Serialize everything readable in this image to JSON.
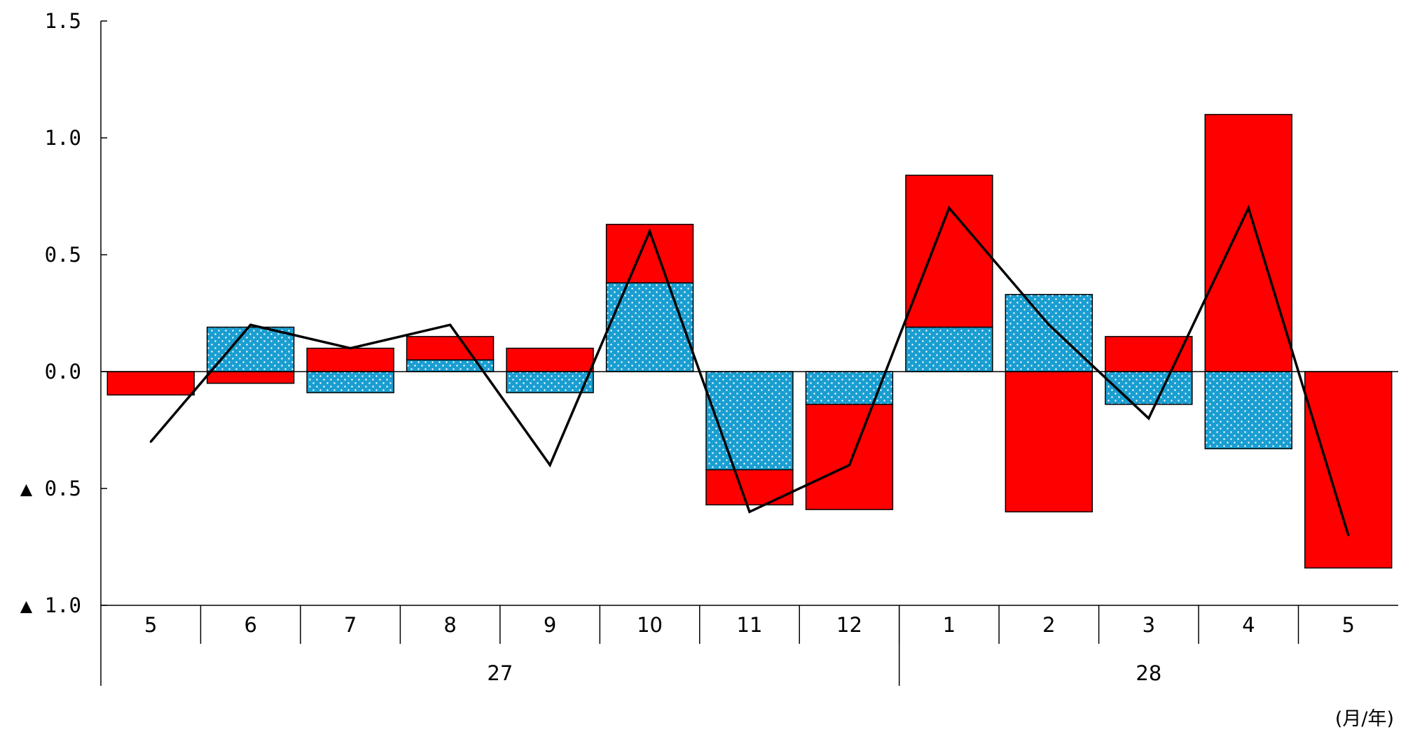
{
  "chart_data": {
    "type": "bar",
    "stacked": true,
    "title": "",
    "ylim": [
      -1.0,
      1.5
    ],
    "y_ticks": [
      {
        "value": 1.5,
        "label": "1.5"
      },
      {
        "value": 1.0,
        "label": "1.0"
      },
      {
        "value": 0.5,
        "label": "0.5"
      },
      {
        "value": 0.0,
        "label": "0.0"
      },
      {
        "value": -0.5,
        "label": "▲ 0.5"
      },
      {
        "value": -1.0,
        "label": "▲ 1.0"
      }
    ],
    "categories": [
      "5",
      "6",
      "7",
      "8",
      "9",
      "10",
      "11",
      "12",
      "1",
      "2",
      "3",
      "4",
      "5"
    ],
    "year_groups": [
      {
        "label": "27",
        "start": 0,
        "end": 7
      },
      {
        "label": "28",
        "start": 8,
        "end": 12
      }
    ],
    "unit_label": "(月/年)",
    "series": [
      {
        "type": "bar",
        "pattern": "dotted",
        "color": "#1a9ed1",
        "dot_color": "#ffffff",
        "values": [
          0.0,
          0.19,
          -0.09,
          0.05,
          -0.09,
          0.38,
          -0.42,
          -0.14,
          0.19,
          0.33,
          -0.14,
          -0.33,
          0.0
        ]
      },
      {
        "type": "bar",
        "pattern": "solid",
        "color": "#ff0000",
        "values": [
          -0.1,
          -0.05,
          0.1,
          0.1,
          0.1,
          0.25,
          -0.15,
          -0.45,
          0.65,
          -0.6,
          0.15,
          1.1,
          -0.84
        ]
      },
      {
        "type": "line",
        "color": "#000000",
        "values": [
          -0.3,
          0.2,
          0.1,
          0.2,
          -0.4,
          0.6,
          -0.6,
          -0.4,
          0.7,
          0.2,
          -0.2,
          0.7,
          -0.7
        ]
      }
    ]
  }
}
